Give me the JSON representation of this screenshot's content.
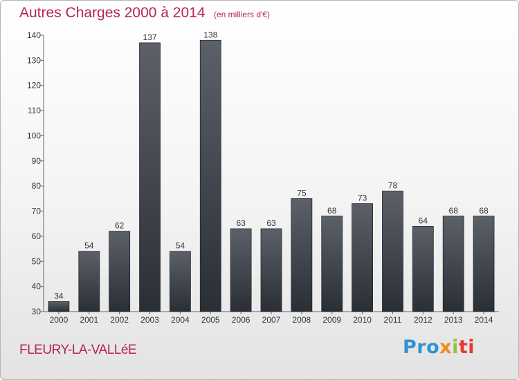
{
  "chart_data": {
    "type": "bar",
    "title": "Autres Charges 2000 à 2014",
    "subtitle": "(en milliers d'€)",
    "categories": [
      "2000",
      "2001",
      "2002",
      "2003",
      "2004",
      "2005",
      "2006",
      "2007",
      "2008",
      "2009",
      "2010",
      "2011",
      "2012",
      "2013",
      "2014"
    ],
    "values": [
      34,
      54,
      62,
      137,
      54,
      138,
      63,
      63,
      75,
      68,
      73,
      78,
      64,
      68,
      68
    ],
    "data_labels": [
      "34",
      "54",
      "62",
      "137",
      "54",
      "138",
      "63",
      "63",
      "75",
      "68",
      "73",
      "78",
      "64",
      "68",
      "68"
    ],
    "ylim": [
      30,
      140
    ],
    "yticks": [
      "30",
      "40",
      "50",
      "60",
      "70",
      "80",
      "90",
      "100",
      "110",
      "120",
      "130",
      "140"
    ],
    "ytick_values": [
      30,
      40,
      50,
      60,
      70,
      80,
      90,
      100,
      110,
      120,
      130,
      140
    ],
    "grid": false,
    "bar_color_top": "#5c6068",
    "bar_color_bottom": "#2a2e35",
    "text_color": "#b5274e"
  },
  "footer": {
    "commune": "FLEURY-LA-VALLéE"
  },
  "logo": {
    "parts": [
      "Pro",
      "x",
      "i",
      "ti"
    ]
  }
}
